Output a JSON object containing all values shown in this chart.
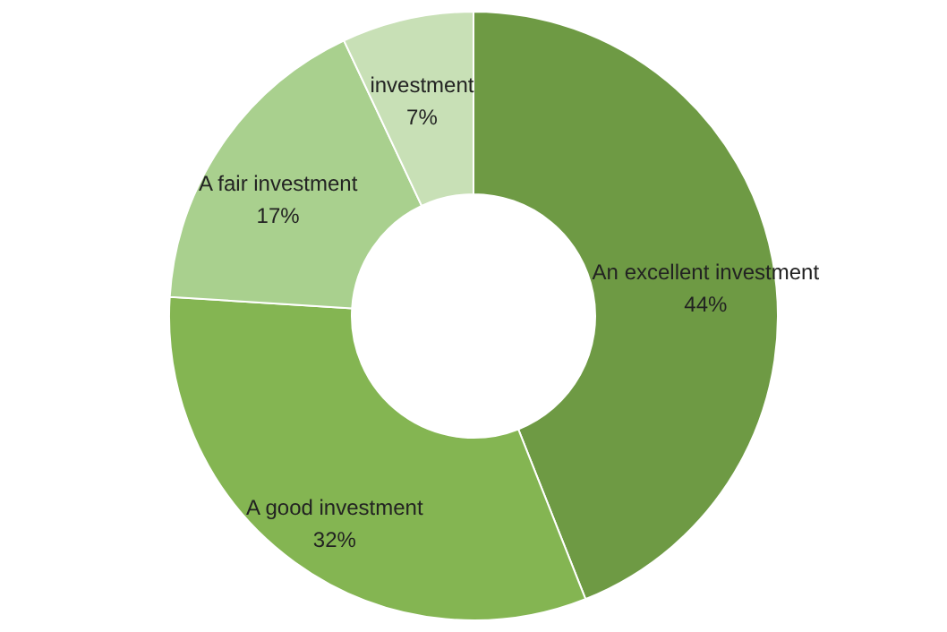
{
  "chart_data": {
    "type": "donut",
    "categories": [
      "An excellent investment",
      "A good investment",
      "A fair investment",
      "investment"
    ],
    "values": [
      44,
      32,
      17,
      7
    ],
    "colors": [
      "#6e9a44",
      "#84b552",
      "#a9d08e",
      "#c8e0b6"
    ],
    "value_labels": [
      "44%",
      "32%",
      "17%",
      "7%"
    ],
    "legend": false
  }
}
